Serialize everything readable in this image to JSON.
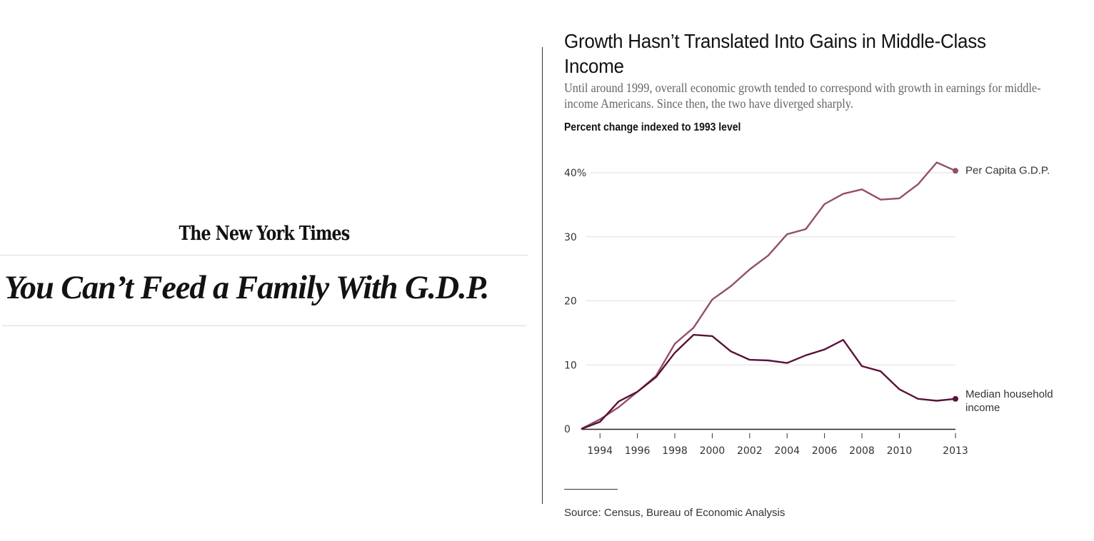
{
  "article": {
    "masthead": "The New York Times",
    "headline": "You Can’t Feed a Family With G.D.P."
  },
  "graphic": {
    "title": "Growth Hasn’t Translated Into Gains in Middle-Class Income",
    "subtitle": "Until around 1999, overall economic growth tended to correspond with growth in earnings for middle-income Americans. Since then, the two have diverged sharply.",
    "axis_note": "Percent change indexed to 1993 level",
    "source": "Source: Census, Bureau of Economic Analysis"
  },
  "chart_data": {
    "type": "line",
    "title": "Growth Hasn’t Translated Into Gains in Middle-Class Income",
    "ylabel": "Percent change indexed to 1993 level",
    "xlabel": "",
    "x": [
      1993,
      1994,
      1995,
      1996,
      1997,
      1998,
      1999,
      2000,
      2001,
      2002,
      2003,
      2004,
      2005,
      2006,
      2007,
      2008,
      2009,
      2010,
      2011,
      2012,
      2013
    ],
    "xlim": [
      1993,
      2013
    ],
    "ylim": [
      0,
      40
    ],
    "x_ticks": [
      1994,
      1996,
      1998,
      2000,
      2002,
      2004,
      2006,
      2008,
      2010,
      2013
    ],
    "x_tick_labels": [
      "1994",
      "1996",
      "1998",
      "2000",
      "2002",
      "2004",
      "2006",
      "2008",
      "2010",
      "2013"
    ],
    "y_ticks": [
      0,
      10,
      20,
      30,
      40
    ],
    "y_tick_labels": [
      "0",
      "10",
      "20",
      "30",
      "40%"
    ],
    "grid": true,
    "legend": "direct labels at line ends (right)",
    "series": [
      {
        "name": "Per Capita G.D.P.",
        "color": "#934e6b",
        "values": [
          0,
          1.5,
          3.4,
          5.8,
          8.3,
          13.3,
          15.8,
          20.2,
          22.3,
          24.9,
          27.1,
          30.4,
          31.2,
          35.1,
          36.7,
          37.4,
          35.8,
          36.0,
          38.2,
          41.6,
          40.3
        ]
      },
      {
        "name": "Median household income",
        "color": "#5a1238",
        "values": [
          0,
          1.1,
          4.3,
          5.8,
          8.1,
          11.9,
          14.7,
          14.5,
          12.1,
          10.8,
          10.7,
          10.3,
          11.5,
          12.4,
          13.9,
          9.8,
          9.0,
          6.2,
          4.7,
          4.4,
          4.7
        ]
      }
    ]
  }
}
